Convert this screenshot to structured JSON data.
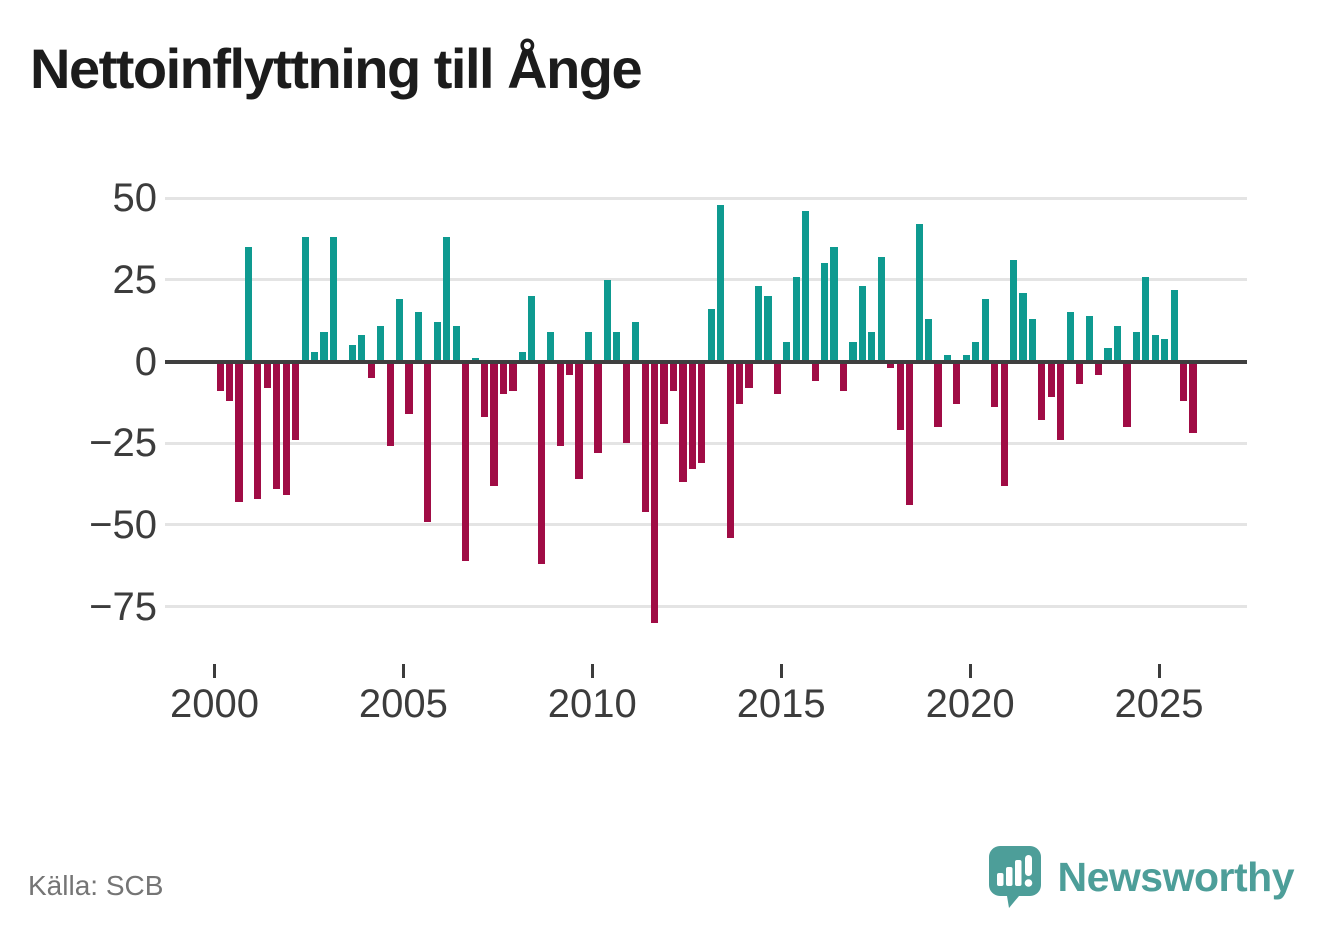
{
  "title": "Nettoinflyttning till Ånge",
  "source": "Källa: SCB",
  "branding": {
    "name": "Newsworthy"
  },
  "colors": {
    "positive": "#0e9a90",
    "negative": "#a00c45",
    "logo": "#4d9e99",
    "grid": "#e4e4e4",
    "zero_line": "#3f3f3f",
    "axis_text": "#3c3c3c",
    "title_text": "#1c1c1c",
    "source_text": "#757575",
    "background": "#ffffff"
  },
  "chart_data": {
    "type": "bar",
    "title": "Nettoinflyttning till Ånge",
    "x_unit": "quarter",
    "period_start": "2000 Q1",
    "period_end": "2025 Q4",
    "grid": "horizontal",
    "legend": "none",
    "ylim": [
      -82,
      52
    ],
    "yticks": [
      50,
      25,
      0,
      -25,
      -50,
      -75
    ],
    "ytick_labels": [
      "50",
      "25",
      "0",
      "−25",
      "−50",
      "−75"
    ],
    "xtick_years": [
      2000,
      2005,
      2010,
      2015,
      2020,
      2025
    ],
    "xtick_labels": [
      "2000",
      "2005",
      "2010",
      "2015",
      "2020",
      "2025"
    ],
    "series": [
      {
        "name": "Nettoinflyttning",
        "years": [
          {
            "year": 2000,
            "values": [
              -9,
              -12,
              -43,
              35
            ]
          },
          {
            "year": 2001,
            "values": [
              -42,
              -8,
              -39,
              -41
            ]
          },
          {
            "year": 2002,
            "values": [
              -24,
              38,
              3,
              9
            ]
          },
          {
            "year": 2003,
            "values": [
              38,
              0,
              5,
              8
            ]
          },
          {
            "year": 2004,
            "values": [
              -5,
              11,
              -26,
              19
            ]
          },
          {
            "year": 2005,
            "values": [
              -16,
              15,
              -49,
              12
            ]
          },
          {
            "year": 2006,
            "values": [
              38,
              11,
              -61,
              1
            ]
          },
          {
            "year": 2007,
            "values": [
              -17,
              -38,
              -10,
              -9
            ]
          },
          {
            "year": 2008,
            "values": [
              3,
              20,
              -62,
              9
            ]
          },
          {
            "year": 2009,
            "values": [
              -26,
              -4,
              -36,
              9
            ]
          },
          {
            "year": 2010,
            "values": [
              -28,
              25,
              9,
              -25
            ]
          },
          {
            "year": 2011,
            "values": [
              12,
              -46,
              -80,
              -19
            ]
          },
          {
            "year": 2012,
            "values": [
              -9,
              -37,
              -33,
              -31
            ]
          },
          {
            "year": 2013,
            "values": [
              16,
              48,
              -54,
              -13
            ]
          },
          {
            "year": 2014,
            "values": [
              -8,
              23,
              20,
              -10
            ]
          },
          {
            "year": 2015,
            "values": [
              6,
              26,
              46,
              -6
            ]
          },
          {
            "year": 2016,
            "values": [
              30,
              35,
              -9,
              6
            ]
          },
          {
            "year": 2017,
            "values": [
              23,
              9,
              32,
              -2
            ]
          },
          {
            "year": 2018,
            "values": [
              -21,
              -44,
              42,
              13
            ]
          },
          {
            "year": 2019,
            "values": [
              -20,
              2,
              -13,
              2
            ]
          },
          {
            "year": 2020,
            "values": [
              6,
              19,
              -14,
              -38
            ]
          },
          {
            "year": 2021,
            "values": [
              31,
              21,
              13,
              -18
            ]
          },
          {
            "year": 2022,
            "values": [
              -11,
              -24,
              15,
              -7
            ]
          },
          {
            "year": 2023,
            "values": [
              14,
              -4,
              4,
              11
            ]
          },
          {
            "year": 2024,
            "values": [
              -20,
              9,
              26,
              8
            ]
          },
          {
            "year": 2025,
            "values": [
              7,
              22,
              -12,
              -22
            ]
          }
        ]
      }
    ]
  }
}
